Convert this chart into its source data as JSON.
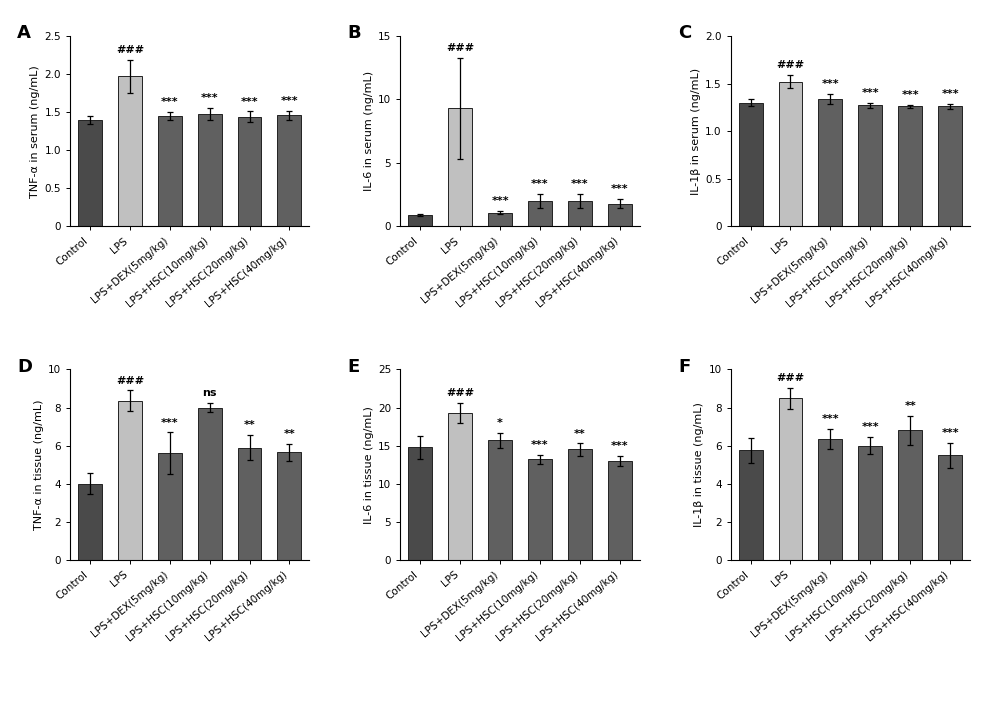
{
  "categories": [
    "Control",
    "LPS",
    "LPS+DEX(5mg/kg)",
    "LPS+HSC(10mg/kg)",
    "LPS+HSC(20mg/kg)",
    "LPS+HSC(40mg/kg)"
  ],
  "panels": [
    {
      "label": "A",
      "ylabel": "TNF-α in serum (ng/mL)",
      "ylim": [
        0,
        2.5
      ],
      "yticks": [
        0.0,
        0.5,
        1.0,
        1.5,
        2.0,
        2.5
      ],
      "ytick_labels": [
        "0",
        "0.5",
        "1.0",
        "1.5",
        "2.0",
        "2.5"
      ],
      "values": [
        1.4,
        1.97,
        1.45,
        1.48,
        1.44,
        1.46
      ],
      "errors": [
        0.05,
        0.22,
        0.05,
        0.08,
        0.07,
        0.06
      ],
      "sig_lps": "###",
      "sig_others": [
        "***",
        "***",
        "***",
        "***"
      ]
    },
    {
      "label": "B",
      "ylabel": "IL-6 in serum (ng/mL)",
      "ylim": [
        0,
        15
      ],
      "yticks": [
        0,
        5,
        10,
        15
      ],
      "ytick_labels": [
        "0",
        "5",
        "10",
        "15"
      ],
      "values": [
        0.9,
        9.3,
        1.1,
        2.0,
        2.0,
        1.8
      ],
      "errors": [
        0.1,
        4.0,
        0.15,
        0.55,
        0.55,
        0.35
      ],
      "sig_lps": "###",
      "sig_others": [
        "***",
        "***",
        "***",
        "***"
      ]
    },
    {
      "label": "C",
      "ylabel": "IL-1β in serum (ng/mL)",
      "ylim": [
        0,
        2.0
      ],
      "yticks": [
        0.0,
        0.5,
        1.0,
        1.5,
        2.0
      ],
      "ytick_labels": [
        "0",
        "0.5",
        "1.0",
        "1.5",
        "2.0"
      ],
      "values": [
        1.3,
        1.52,
        1.34,
        1.27,
        1.26,
        1.26
      ],
      "errors": [
        0.04,
        0.07,
        0.05,
        0.03,
        0.02,
        0.03
      ],
      "sig_lps": "###",
      "sig_others": [
        "***",
        "***",
        "***",
        "***"
      ]
    },
    {
      "label": "D",
      "ylabel": "TNF-α in tissue (ng/mL)",
      "ylim": [
        0,
        10
      ],
      "yticks": [
        0,
        2,
        4,
        6,
        8,
        10
      ],
      "ytick_labels": [
        "0",
        "2",
        "4",
        "6",
        "8",
        "10"
      ],
      "values": [
        4.0,
        8.35,
        5.6,
        8.0,
        5.9,
        5.65
      ],
      "errors": [
        0.55,
        0.55,
        1.1,
        0.25,
        0.65,
        0.45
      ],
      "sig_lps": "###",
      "sig_others": [
        "***",
        "ns",
        "**",
        "**"
      ]
    },
    {
      "label": "E",
      "ylabel": "IL-6 in tissue (ng/mL)",
      "ylim": [
        0,
        25
      ],
      "yticks": [
        0,
        5,
        10,
        15,
        20,
        25
      ],
      "ytick_labels": [
        "0",
        "5",
        "10",
        "15",
        "20",
        "25"
      ],
      "values": [
        14.8,
        19.3,
        15.7,
        13.2,
        14.5,
        13.0
      ],
      "errors": [
        1.5,
        1.3,
        1.0,
        0.6,
        0.8,
        0.7
      ],
      "sig_lps": "###",
      "sig_others": [
        "*",
        "***",
        "**",
        "***"
      ]
    },
    {
      "label": "F",
      "ylabel": "IL-1β in tissue (ng/mL)",
      "ylim": [
        0,
        10
      ],
      "yticks": [
        0,
        2,
        4,
        6,
        8,
        10
      ],
      "ytick_labels": [
        "0",
        "2",
        "4",
        "6",
        "8",
        "10"
      ],
      "values": [
        5.75,
        8.5,
        6.35,
        6.0,
        6.8,
        5.5
      ],
      "errors": [
        0.65,
        0.55,
        0.55,
        0.45,
        0.75,
        0.65
      ],
      "sig_lps": "###",
      "sig_others": [
        "***",
        "***",
        "**",
        "***"
      ]
    }
  ],
  "bar_colors": [
    "#4a4a4a",
    "#c0c0c0",
    "#606060",
    "#606060",
    "#606060",
    "#606060"
  ],
  "edge_color": "#222222",
  "bg_color": "#ffffff",
  "tick_fontsize": 7.5,
  "ylabel_fontsize": 8.0,
  "xticklabel_fontsize": 7.5,
  "sig_fontsize": 8.0,
  "panel_label_size": 13
}
